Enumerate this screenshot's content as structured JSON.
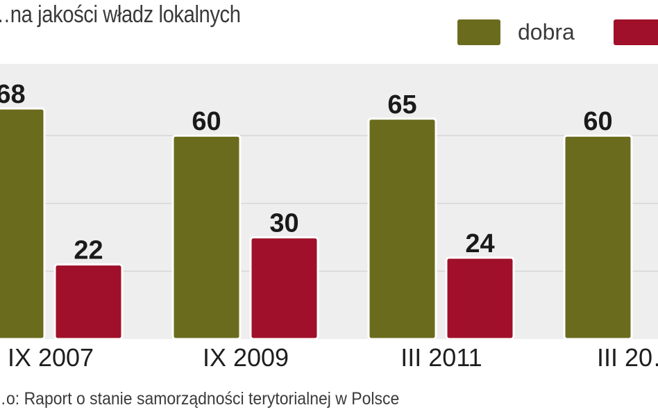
{
  "title": "…na jakości władz lokalnych",
  "source": "…o: Raport o stanie samorządności terytorialnej w Polsce",
  "colors": {
    "dobra": "#6b6b1e",
    "zla": "#a0102a"
  },
  "chart_data": {
    "type": "bar",
    "title": "…na jakości władz lokalnych",
    "categories": [
      "IX 2007",
      "IX 2009",
      "III 2011",
      "III 20…"
    ],
    "series": [
      {
        "name": "dobra",
        "values": [
          68,
          60,
          65,
          60
        ]
      },
      {
        "name": "",
        "values": [
          22,
          30,
          24,
          null
        ]
      }
    ],
    "ylim": [
      0,
      80
    ],
    "grid": true,
    "legend": "top-right"
  }
}
